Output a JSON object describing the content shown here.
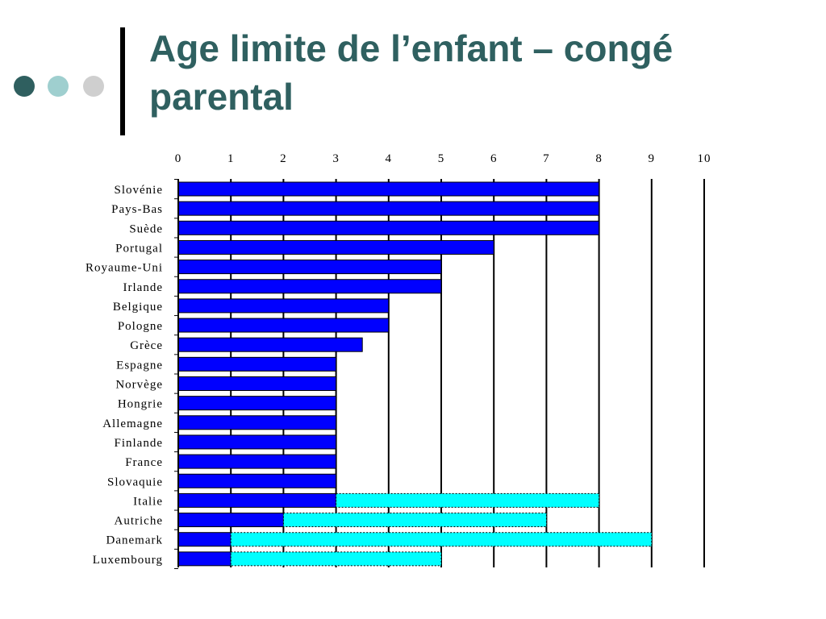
{
  "slide": {
    "title": "Age limite de l’enfant – congé parental"
  },
  "decor": {
    "dot_colors": [
      "#2f5f5f",
      "#9fcfcf",
      "#cfcfcf"
    ],
    "title_color": "#2f6060"
  },
  "chart_data": {
    "type": "bar",
    "orientation": "horizontal",
    "stacked": true,
    "xlim": [
      0,
      10
    ],
    "ticks": [
      "0",
      "1",
      "2",
      "3",
      "4",
      "5",
      "6",
      "7",
      "8",
      "9",
      "10"
    ],
    "tick_position": "top",
    "grid": true,
    "categories": [
      "Slovénie",
      "Pays-Bas",
      "Suède",
      "Portugal",
      "Royaume-Uni",
      "Irlande",
      "Belgique",
      "Pologne",
      "Grèce",
      "Espagne",
      "Norvège",
      "Hongrie",
      "Allemagne",
      "Finlande",
      "France",
      "Slovaquie",
      "Italie",
      "Autriche",
      "Danemark",
      "Luxembourg"
    ],
    "series": [
      {
        "color": "#0000ff",
        "border": "solid",
        "values": [
          8,
          8,
          8,
          6,
          5,
          5,
          4,
          4,
          3.5,
          3,
          3,
          3,
          3,
          3,
          3,
          3,
          3,
          2,
          1,
          1
        ]
      },
      {
        "color": "#00ffff",
        "border": "dotted",
        "values": [
          0,
          0,
          0,
          0,
          0,
          0,
          0,
          0,
          0,
          0,
          0,
          0,
          0,
          0,
          0,
          0,
          5,
          5,
          8,
          4
        ]
      }
    ]
  }
}
